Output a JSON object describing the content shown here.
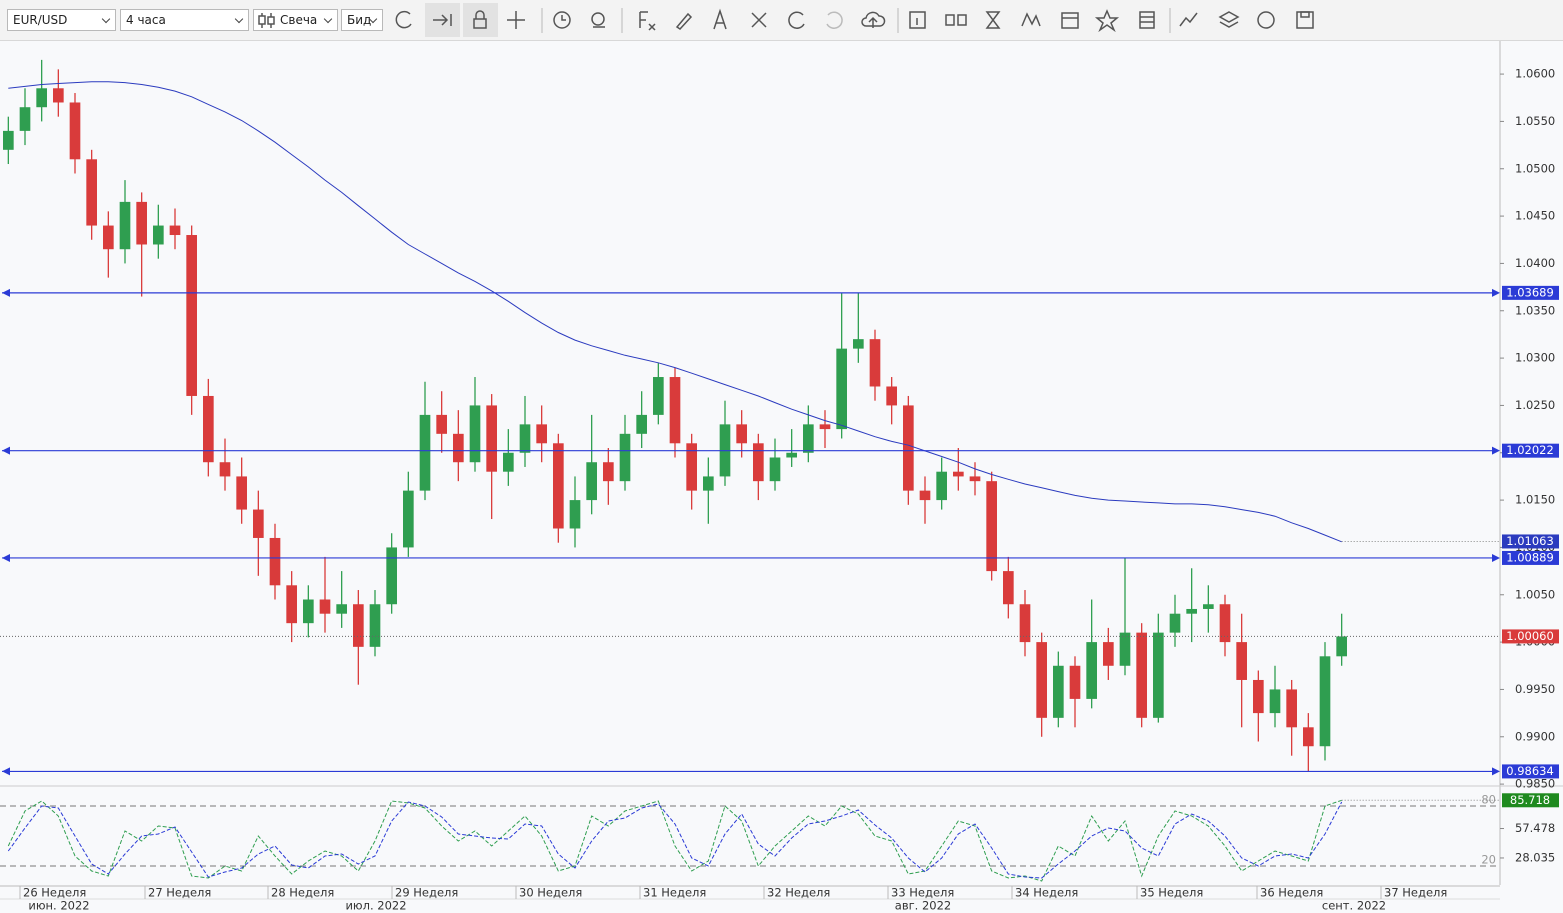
{
  "toolbar": {
    "symbol": "EUR/USD",
    "interval": "4 часа",
    "chart_style": "Свеча",
    "price_side": "Бид"
  },
  "chart_data": [
    {
      "type": "candlestick",
      "xlim": [
        0,
        90
      ],
      "ylim": [
        0.9848,
        1.0636
      ],
      "yticks": [
        {
          "value": 1.06,
          "label": "1.0600"
        },
        {
          "value": 1.055,
          "label": "1.0550"
        },
        {
          "value": 1.05,
          "label": "1.0500"
        },
        {
          "value": 1.045,
          "label": "1.0450"
        },
        {
          "value": 1.04,
          "label": "1.0400"
        },
        {
          "value": 1.035,
          "label": "1.0350"
        },
        {
          "value": 1.03,
          "label": "1.0300"
        },
        {
          "value": 1.025,
          "label": "1.0250"
        },
        {
          "value": 1.02,
          "label": "1.0200"
        },
        {
          "value": 1.015,
          "label": "1.0150"
        },
        {
          "value": 1.01,
          "label": "1.0100"
        },
        {
          "value": 1.005,
          "label": "1.0050"
        },
        {
          "value": 1.0,
          "label": "1.0000"
        },
        {
          "value": 0.995,
          "label": "0.9950"
        },
        {
          "value": 0.99,
          "label": "0.9900"
        },
        {
          "value": 0.985,
          "label": "0.9850"
        }
      ],
      "xticks": [
        {
          "value": 1.2,
          "label": "26 Неделя"
        },
        {
          "value": 8.7,
          "label": "27 Неделя"
        },
        {
          "value": 16.08,
          "label": "28 Неделя"
        },
        {
          "value": 23.52,
          "label": "29 Неделя"
        },
        {
          "value": 30.96,
          "label": "30 Неделя"
        },
        {
          "value": 38.4,
          "label": "31 Неделя"
        },
        {
          "value": 45.84,
          "label": "32 Неделя"
        },
        {
          "value": 53.28,
          "label": "33 Неделя"
        },
        {
          "value": 60.72,
          "label": "34 Неделя"
        },
        {
          "value": 68.22,
          "label": "35 Неделя"
        },
        {
          "value": 75.42,
          "label": "36 Неделя"
        },
        {
          "value": 82.86,
          "label": "37 Неделя"
        }
      ],
      "month_ticks": [
        {
          "value": 3.54,
          "label": "июн. 2022"
        },
        {
          "value": 22.56,
          "label": "июл. 2022"
        },
        {
          "value": 55.38,
          "label": "авг. 2022"
        },
        {
          "value": 81.24,
          "label": "сент. 2022"
        }
      ],
      "up_color": "#2f9e50",
      "down_color": "#d93b3b",
      "open": [
        1.052,
        1.054,
        1.0565,
        1.0585,
        1.057,
        1.051,
        1.044,
        1.0415,
        1.0465,
        1.042,
        1.044,
        1.043,
        1.026,
        1.019,
        1.0175,
        1.014,
        1.011,
        1.006,
        1.002,
        1.0045,
        1.003,
        1.004,
        0.9995,
        1.004,
        1.01,
        1.016,
        1.024,
        1.022,
        1.019,
        1.025,
        1.018,
        1.02,
        1.023,
        1.021,
        1.012,
        1.015,
        1.019,
        1.017,
        1.022,
        1.024,
        1.028,
        1.021,
        1.016,
        1.0175,
        1.023,
        1.021,
        1.017,
        1.0195,
        1.02,
        1.023,
        1.0225,
        1.031,
        1.032,
        1.027,
        1.025,
        1.016,
        1.015,
        1.018,
        1.0175,
        1.017,
        1.0075,
        1.004,
        1.0,
        0.992,
        0.9975,
        0.994,
        1.0,
        0.9975,
        1.001,
        0.992,
        1.001,
        1.003,
        1.0035,
        1.004,
        1.0,
        0.996,
        0.9925,
        0.995,
        0.991,
        0.989,
        0.9985
      ],
      "high": [
        1.0555,
        1.0585,
        1.0615,
        1.0605,
        1.058,
        1.052,
        1.0455,
        1.0488,
        1.0475,
        1.0462,
        1.0458,
        1.044,
        1.0278,
        1.0215,
        1.0195,
        1.016,
        1.0125,
        1.0075,
        1.006,
        1.009,
        1.0075,
        1.0055,
        1.0055,
        1.0115,
        1.018,
        1.0275,
        1.0265,
        1.0245,
        1.028,
        1.0262,
        1.0225,
        1.026,
        1.025,
        1.022,
        1.0175,
        1.024,
        1.0205,
        1.024,
        1.0265,
        1.0295,
        1.029,
        1.022,
        1.0195,
        1.0255,
        1.0245,
        1.022,
        1.0215,
        1.0225,
        1.025,
        1.0245,
        1.0369,
        1.0369,
        1.033,
        1.028,
        1.026,
        1.0175,
        1.0195,
        1.0205,
        1.019,
        1.018,
        1.009,
        1.0055,
        1.001,
        0.999,
        0.9985,
        1.0045,
        1.0015,
        1.0089,
        1.002,
        1.003,
        1.005,
        1.0078,
        1.006,
        1.005,
        1.003,
        0.997,
        0.9975,
        0.996,
        0.9925,
        1.0,
        1.003
      ],
      "low": [
        1.0505,
        1.0525,
        1.055,
        1.0555,
        1.0495,
        1.0425,
        1.0385,
        1.04,
        1.0365,
        1.0405,
        1.0415,
        1.024,
        1.0175,
        1.016,
        1.0125,
        1.007,
        1.0045,
        1.0,
        1.0005,
        1.001,
        1.0015,
        0.9955,
        0.9985,
        1.003,
        1.009,
        1.015,
        1.02,
        1.017,
        1.018,
        1.013,
        1.0165,
        1.0185,
        1.019,
        1.0105,
        1.01,
        1.0135,
        1.0145,
        1.016,
        1.0205,
        1.023,
        1.0195,
        1.014,
        1.0125,
        1.0165,
        1.0195,
        1.015,
        1.016,
        1.0185,
        1.019,
        1.0205,
        1.0215,
        1.0295,
        1.0255,
        1.023,
        1.0145,
        1.0125,
        1.014,
        1.016,
        1.0155,
        1.0065,
        1.0025,
        0.9985,
        0.99,
        0.991,
        0.991,
        0.993,
        0.996,
        0.9965,
        0.991,
        0.9915,
        0.9995,
        1.0,
        1.001,
        0.9985,
        0.991,
        0.9895,
        0.991,
        0.988,
        0.9863,
        0.9875,
        0.9975
      ],
      "close": [
        1.054,
        1.0565,
        1.0585,
        1.057,
        1.051,
        1.044,
        1.0415,
        1.0465,
        1.042,
        1.044,
        1.043,
        1.026,
        1.019,
        1.0175,
        1.014,
        1.011,
        1.006,
        1.002,
        1.0045,
        1.003,
        1.004,
        0.9995,
        1.004,
        1.01,
        1.016,
        1.024,
        1.022,
        1.019,
        1.025,
        1.018,
        1.02,
        1.023,
        1.021,
        1.012,
        1.015,
        1.019,
        1.017,
        1.022,
        1.024,
        1.028,
        1.021,
        1.016,
        1.0175,
        1.023,
        1.021,
        1.017,
        1.0195,
        1.02,
        1.023,
        1.0225,
        1.031,
        1.032,
        1.027,
        1.025,
        1.016,
        1.015,
        1.018,
        1.0175,
        1.017,
        1.0075,
        1.004,
        1.0,
        0.992,
        0.9975,
        0.994,
        1.0,
        0.9975,
        1.001,
        0.992,
        1.001,
        1.003,
        1.0035,
        1.004,
        1.0,
        0.996,
        0.9925,
        0.995,
        0.991,
        0.989,
        0.9985,
        1.0006
      ],
      "ma": {
        "color": "#2b3bbf",
        "last_label": 1.01063,
        "values": [
          1.0585,
          1.0587,
          1.0589,
          1.059,
          1.0591,
          1.0592,
          1.0592,
          1.0591,
          1.0589,
          1.0586,
          1.0582,
          1.0576,
          1.0568,
          1.056,
          1.0551,
          1.054,
          1.0528,
          1.0515,
          1.0502,
          1.0488,
          1.0475,
          1.0461,
          1.0447,
          1.0433,
          1.042,
          1.041,
          1.04,
          1.039,
          1.0381,
          1.0371,
          1.036,
          1.0348,
          1.0337,
          1.0327,
          1.0319,
          1.0313,
          1.0308,
          1.0303,
          1.0299,
          1.0295,
          1.029,
          1.0284,
          1.0278,
          1.0272,
          1.0266,
          1.026,
          1.0253,
          1.0246,
          1.024,
          1.0234,
          1.0229,
          1.0223,
          1.0217,
          1.0212,
          1.0208,
          1.0202,
          1.0196,
          1.019,
          1.0183,
          1.0177,
          1.0172,
          1.0167,
          1.0163,
          1.0159,
          1.0155,
          1.0152,
          1.015,
          1.0149,
          1.0148,
          1.0147,
          1.0146,
          1.0146,
          1.0145,
          1.0143,
          1.014,
          1.0137,
          1.0133,
          1.0126,
          1.012,
          1.0113,
          1.0106
        ]
      },
      "hlines": {
        "color": "#2b3bd6",
        "values": [
          1.03689,
          1.02022,
          1.00889,
          0.98634
        ]
      },
      "last_price": {
        "value": 1.0006,
        "label": "1.00060"
      }
    },
    {
      "type": "oscillator",
      "xlim": [
        0,
        90
      ],
      "ylim": [
        0,
        100
      ],
      "yticks": [
        57.478,
        28.035
      ],
      "levels": [
        80,
        20
      ],
      "series": [
        {
          "color": "#2f9e50",
          "values": [
            40,
            75,
            85,
            70,
            30,
            15,
            10,
            55,
            45,
            60,
            58,
            10,
            8,
            20,
            15,
            50,
            30,
            12,
            25,
            35,
            30,
            15,
            45,
            85,
            83,
            78,
            60,
            45,
            55,
            40,
            55,
            70,
            50,
            15,
            20,
            70,
            60,
            75,
            80,
            85,
            40,
            15,
            25,
            80,
            65,
            20,
            40,
            55,
            70,
            60,
            80,
            72,
            50,
            45,
            12,
            15,
            40,
            65,
            60,
            15,
            8,
            10,
            5,
            40,
            30,
            70,
            45,
            65,
            10,
            50,
            75,
            70,
            60,
            40,
            15,
            25,
            35,
            30,
            25,
            80,
            85.718
          ]
        },
        {
          "color": "#2b3bd6",
          "values": [
            35,
            58,
            80,
            78,
            50,
            22,
            12,
            32,
            50,
            52,
            59,
            34,
            9,
            14,
            18,
            32,
            40,
            21,
            18,
            30,
            32,
            22,
            30,
            65,
            84,
            80,
            69,
            52,
            50,
            48,
            47,
            62,
            60,
            32,
            18,
            45,
            65,
            68,
            78,
            82,
            62,
            28,
            20,
            52,
            72,
            42,
            30,
            48,
            62,
            65,
            70,
            76,
            61,
            48,
            28,
            14,
            28,
            52,
            62,
            38,
            12,
            9,
            8,
            22,
            35,
            50,
            58,
            55,
            38,
            30,
            62,
            72,
            65,
            50,
            28,
            20,
            30,
            32,
            28,
            52,
            84
          ]
        }
      ]
    }
  ]
}
